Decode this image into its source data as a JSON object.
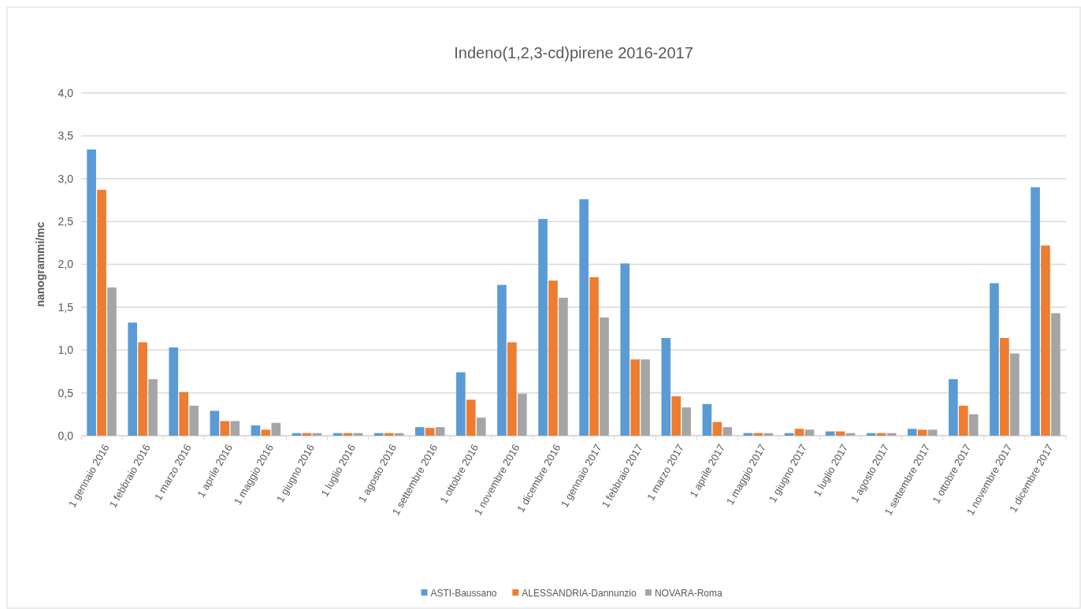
{
  "chart_data": {
    "type": "bar",
    "title": "Indeno(1,2,3-cd)pirene  2016-2017",
    "ylabel": "nanogrammi/mc",
    "categories": [
      "1 gennaio 2016",
      "1 febbraio 2016",
      "1 marzo 2016",
      "1 aprile 2016",
      "1 maggio 2016",
      "1 giugno 2016",
      "1 luglio 2016",
      "1 agosto 2016",
      "1 settembre 2016",
      "1 ottobre 2016",
      "1 novembre 2016",
      "1 dicembre 2016",
      "1 gennaio 2017",
      "1 febbraio 2017",
      "1 marzo 2017",
      "1 aprile 2017",
      "1 maggio 2017",
      "1 giugno 2017",
      "1 luglio 2017",
      "1 agosto 2017",
      "1 settembre 2017",
      "1 ottobre 2017",
      "1 novembre 2017",
      "1 dicembre 2017"
    ],
    "series": [
      {
        "name": "ASTI-Baussano",
        "color": "#5b9bd5",
        "values": [
          3.34,
          1.32,
          1.03,
          0.29,
          0.12,
          0.03,
          0.03,
          0.03,
          0.1,
          0.74,
          1.76,
          2.53,
          2.76,
          2.01,
          1.14,
          0.37,
          0.03,
          0.03,
          0.05,
          0.03,
          0.08,
          0.66,
          1.78,
          2.9
        ]
      },
      {
        "name": "ALESSANDRIA-Dannunzio",
        "color": "#ed7d31",
        "values": [
          2.87,
          1.09,
          0.51,
          0.17,
          0.07,
          0.03,
          0.03,
          0.03,
          0.09,
          0.42,
          1.09,
          1.81,
          1.85,
          0.89,
          0.46,
          0.16,
          0.03,
          0.08,
          0.05,
          0.03,
          0.07,
          0.35,
          1.14,
          2.22
        ]
      },
      {
        "name": "NOVARA-Roma",
        "color": "#a5a5a5",
        "values": [
          1.73,
          0.66,
          0.35,
          0.17,
          0.15,
          0.03,
          0.03,
          0.03,
          0.1,
          0.21,
          0.49,
          1.61,
          1.38,
          0.89,
          0.33,
          0.1,
          0.03,
          0.07,
          0.03,
          0.03,
          0.07,
          0.25,
          0.96,
          1.43
        ]
      }
    ],
    "ylim": [
      0,
      4
    ],
    "yticks": [
      {
        "value": 0,
        "label": "0,0"
      },
      {
        "value": 0.5,
        "label": "0,5"
      },
      {
        "value": 1,
        "label": "1,0"
      },
      {
        "value": 1.5,
        "label": "1,5"
      },
      {
        "value": 2,
        "label": "2,0"
      },
      {
        "value": 2.5,
        "label": "2,5"
      },
      {
        "value": 3,
        "label": "3,0"
      },
      {
        "value": 3.5,
        "label": "3,5"
      },
      {
        "value": 4,
        "label": "4,0"
      }
    ],
    "grid": "y",
    "legend": "bottom"
  }
}
